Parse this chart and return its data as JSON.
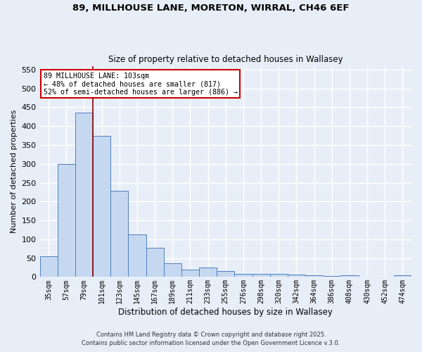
{
  "title": "89, MILLHOUSE LANE, MORETON, WIRRAL, CH46 6EF",
  "subtitle": "Size of property relative to detached houses in Wallasey",
  "xlabel": "Distribution of detached houses by size in Wallasey",
  "ylabel": "Number of detached properties",
  "categories": [
    "35sqm",
    "57sqm",
    "79sqm",
    "101sqm",
    "123sqm",
    "145sqm",
    "167sqm",
    "189sqm",
    "211sqm",
    "233sqm",
    "255sqm",
    "276sqm",
    "298sqm",
    "320sqm",
    "342sqm",
    "364sqm",
    "386sqm",
    "408sqm",
    "430sqm",
    "452sqm",
    "474sqm"
  ],
  "values": [
    55,
    300,
    435,
    375,
    228,
    113,
    78,
    37,
    20,
    25,
    15,
    8,
    9,
    8,
    6,
    4,
    2,
    5,
    1,
    1,
    4
  ],
  "bar_color": "#c5d8f0",
  "bar_edge_color": "#4f7fbe",
  "background_color": "#e8eef8",
  "grid_color": "#ffffff",
  "vline_color": "#8b0000",
  "annotation_text": "89 MILLHOUSE LANE: 103sqm\n← 48% of detached houses are smaller (817)\n52% of semi-detached houses are larger (886) →",
  "annotation_box_color": "#cc0000",
  "ylim": [
    0,
    560
  ],
  "yticks": [
    0,
    50,
    100,
    150,
    200,
    250,
    300,
    350,
    400,
    450,
    500,
    550
  ],
  "footer1": "Contains HM Land Registry data © Crown copyright and database right 2025.",
  "footer2": "Contains public sector information licensed under the Open Government Licence v.3.0."
}
